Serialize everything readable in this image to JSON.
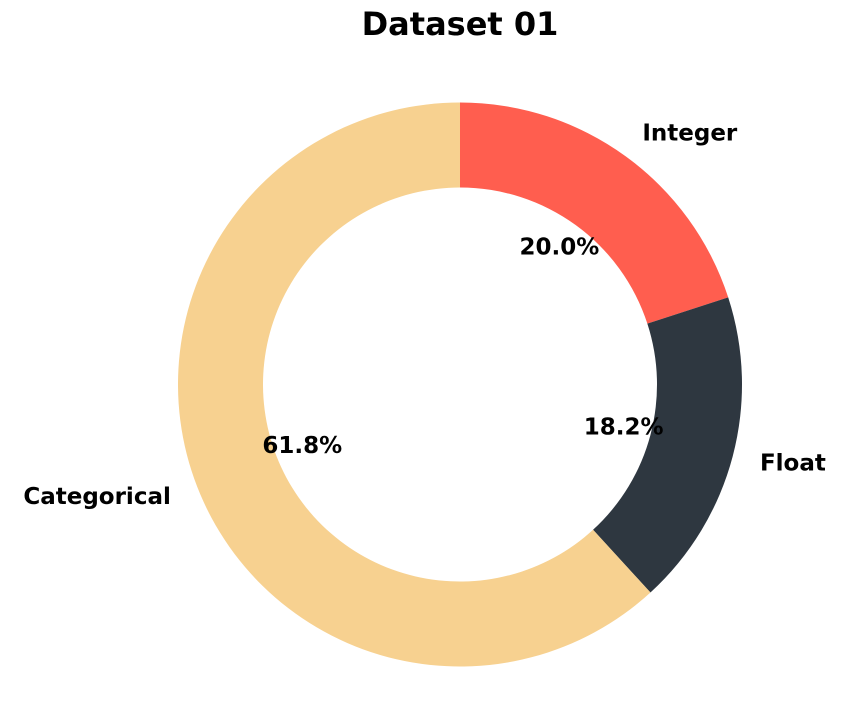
{
  "chart_data": {
    "type": "pie",
    "title": "Dataset 01",
    "donut": true,
    "start_angle_deg": 90,
    "direction": "clockwise",
    "slices": [
      {
        "label": "Integer",
        "value": 20.0,
        "pct_text": "20.0%",
        "color": "#ff5e4f"
      },
      {
        "label": "Float",
        "value": 18.2,
        "pct_text": "18.2%",
        "color": "#2e3740"
      },
      {
        "label": "Categorical",
        "value": 61.8,
        "pct_text": "61.8%",
        "color": "#f7d190"
      }
    ],
    "legend": "none"
  }
}
